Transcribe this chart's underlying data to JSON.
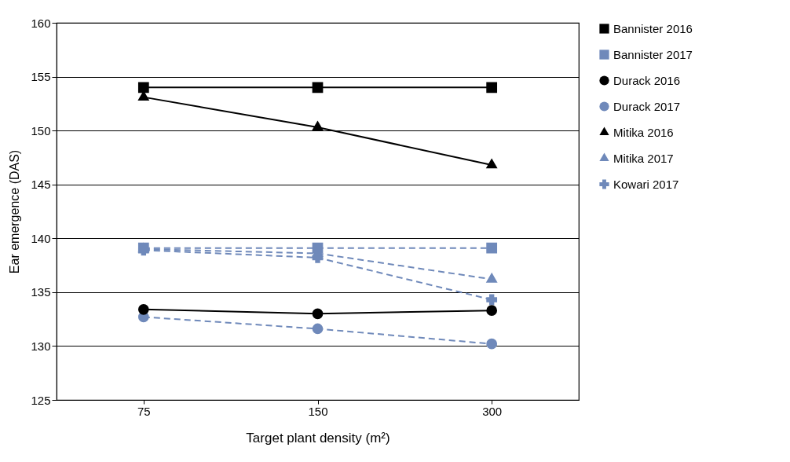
{
  "chart_data": {
    "type": "line",
    "xlabel": "Target plant density (m²)",
    "ylabel": "Ear emergence (DAS)",
    "categories": [
      "75",
      "150",
      "300"
    ],
    "ylim": [
      125,
      160
    ],
    "yticks": [
      125,
      130,
      135,
      140,
      145,
      150,
      155,
      160
    ],
    "grid": "y",
    "legend": "right",
    "series": [
      {
        "name": "Bannister 2016",
        "color": "#000000",
        "marker": "square",
        "line_style": "solid",
        "values": [
          154,
          154,
          154
        ]
      },
      {
        "name": "Bannister 2017",
        "color": "#6f89ba",
        "marker": "square",
        "line_style": "dashed",
        "values": [
          139.1,
          139.1,
          139.1
        ]
      },
      {
        "name": "Durack 2016",
        "color": "#000000",
        "marker": "circle",
        "line_style": "solid",
        "values": [
          133.4,
          133.0,
          133.3
        ]
      },
      {
        "name": "Durack 2017",
        "color": "#6f89ba",
        "marker": "circle",
        "line_style": "dashed",
        "values": [
          132.7,
          131.6,
          130.2
        ]
      },
      {
        "name": "Mitika 2016",
        "color": "#000000",
        "marker": "triangle",
        "line_style": "solid",
        "values": [
          153.1,
          150.3,
          146.8
        ]
      },
      {
        "name": "Mitika 2017",
        "color": "#6f89ba",
        "marker": "triangle",
        "line_style": "dashed",
        "values": [
          139,
          138.6,
          136.2
        ]
      },
      {
        "name": "Kowari 2017",
        "color": "#6f89ba",
        "marker": "cross",
        "line_style": "dashed",
        "values": [
          138.9,
          138.2,
          134.3
        ]
      }
    ]
  }
}
